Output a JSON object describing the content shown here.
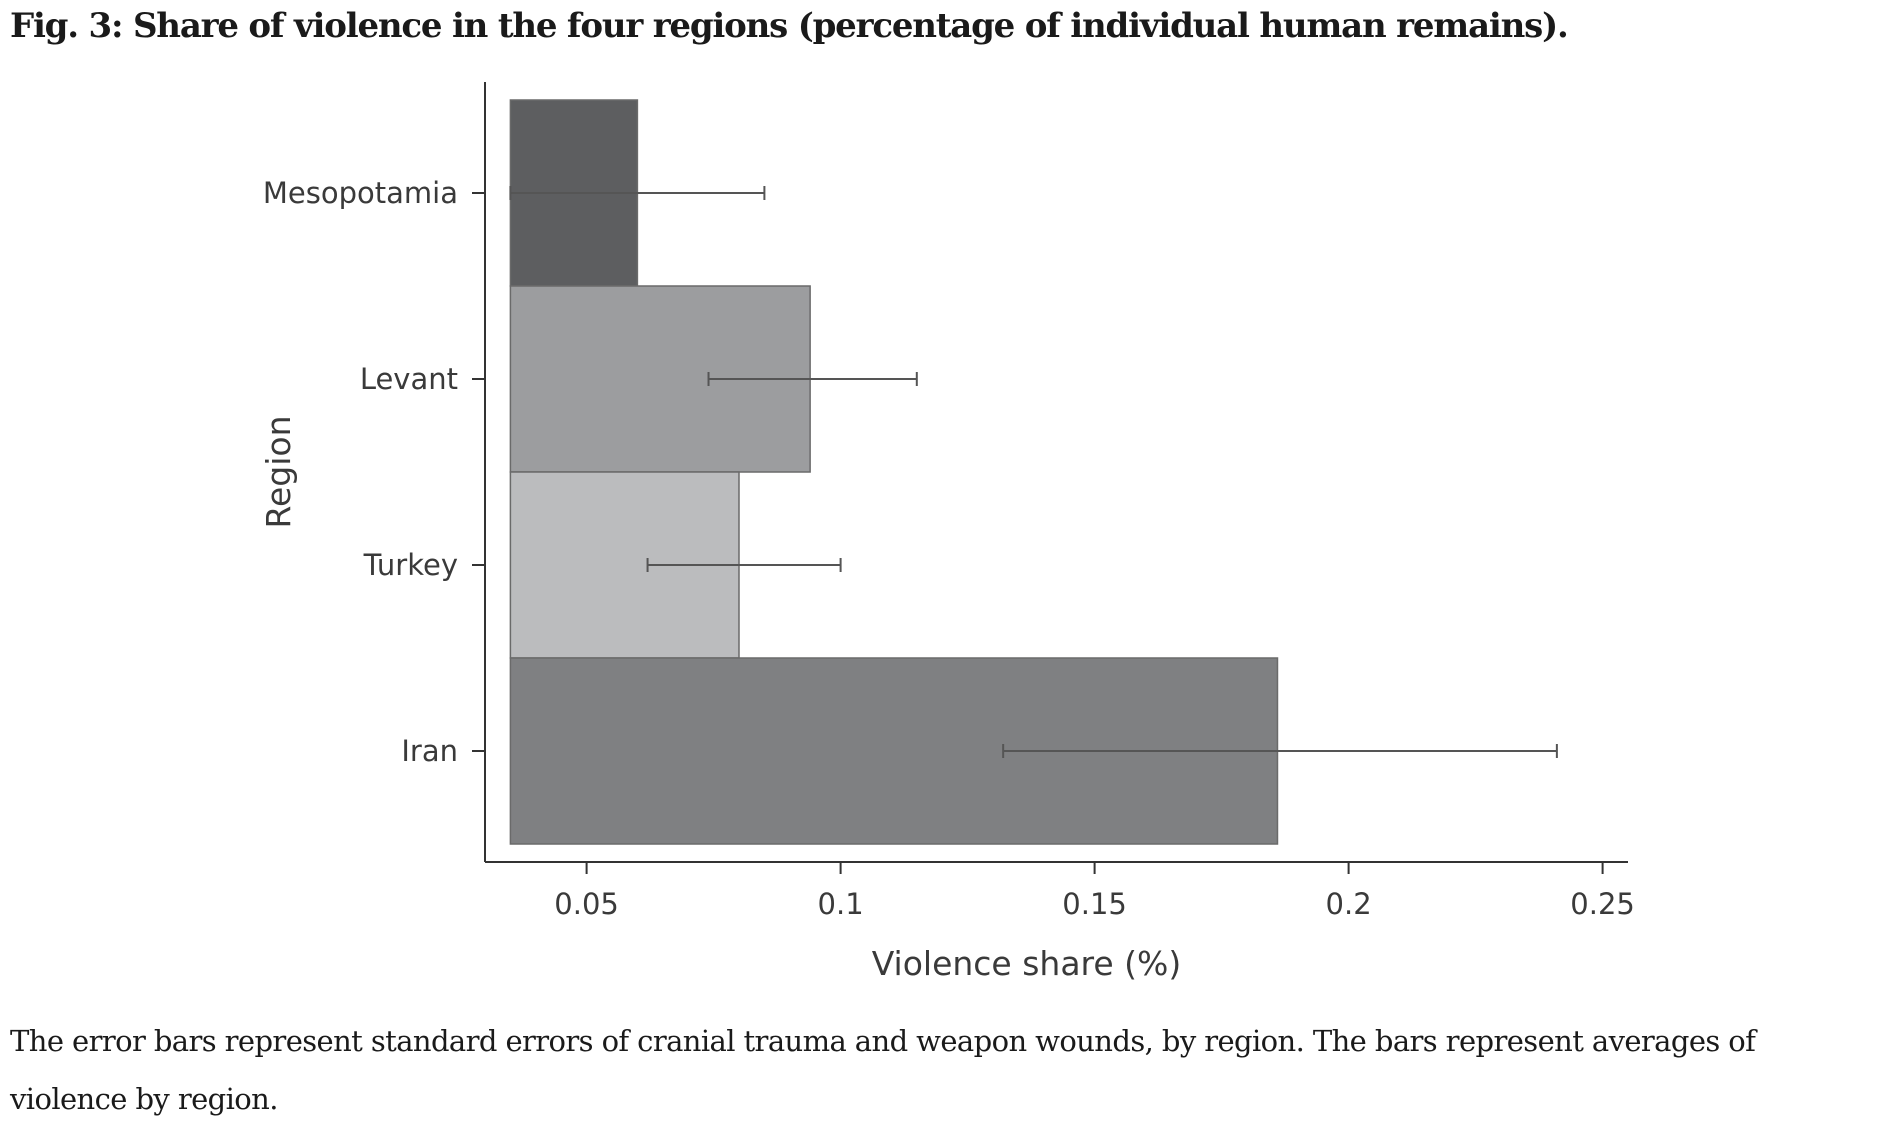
{
  "figure": {
    "title": "Fig. 3: Share of violence in the four regions (percentage of individual human remains).",
    "caption": "The error bars represent standard errors of cranial trauma and weapon wounds, by region. The bars represent averages of violence by region."
  },
  "chart_data": {
    "type": "bar",
    "orientation": "horizontal",
    "xlabel": "Violence share (%)",
    "ylabel": "Region",
    "xlim": [
      0.03,
      0.255
    ],
    "bar_base": 0.035,
    "xticks": [
      0.05,
      0.1,
      0.15,
      0.2,
      0.25
    ],
    "xtick_labels": [
      "0.05",
      "0.1",
      "0.15",
      "0.2",
      "0.25"
    ],
    "categories": [
      "Mesopotamia",
      "Levant",
      "Turkey",
      "Iran"
    ],
    "values": [
      0.06,
      0.094,
      0.08,
      0.186
    ],
    "error_low": [
      0.035,
      0.074,
      0.062,
      0.132
    ],
    "error_high": [
      0.085,
      0.115,
      0.1,
      0.241
    ],
    "colors": [
      "#5d5e60",
      "#9c9d9f",
      "#bbbcbe",
      "#7f8082"
    ],
    "grid": false,
    "legend": "none"
  }
}
